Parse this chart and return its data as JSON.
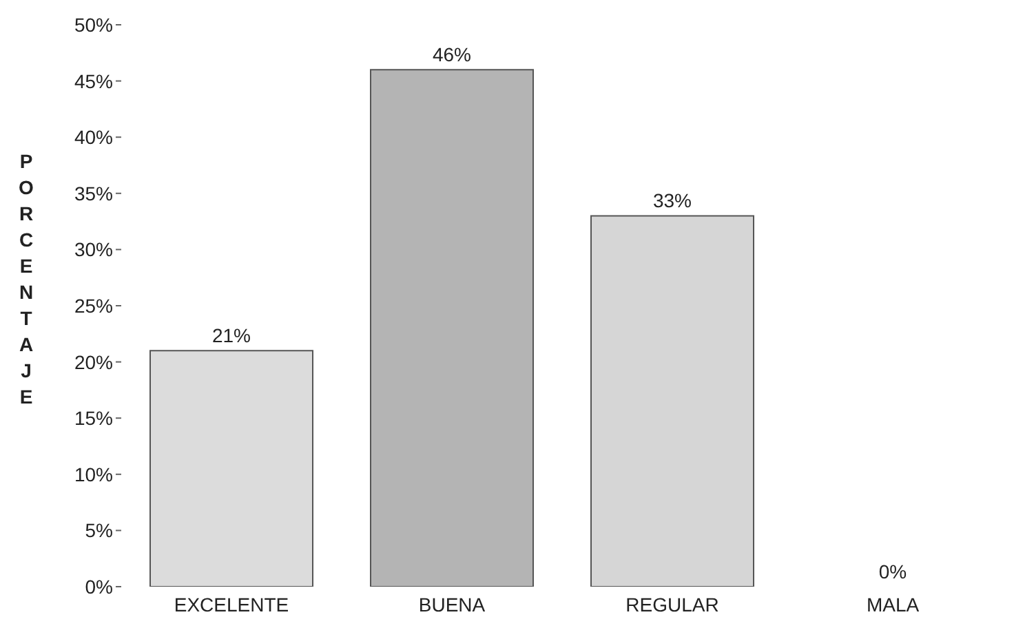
{
  "chart_data": {
    "type": "bar",
    "ylabel": "PORCENTAJE",
    "categories": [
      "EXCELENTE",
      "BUENA",
      "REGULAR",
      "MALA"
    ],
    "values": [
      21,
      46,
      33,
      0
    ],
    "value_labels": [
      "21%",
      "46%",
      "33%",
      "0%"
    ],
    "colors": [
      "#dcdcdc",
      "#b4b4b4",
      "#d6d6d6",
      "#d6d6d6"
    ],
    "ylim": [
      0,
      50
    ],
    "yticks": [
      {
        "value": 0,
        "label": "0%"
      },
      {
        "value": 5,
        "label": "5%"
      },
      {
        "value": 10,
        "label": "10%"
      },
      {
        "value": 15,
        "label": "15%"
      },
      {
        "value": 20,
        "label": "20%"
      },
      {
        "value": 25,
        "label": "25%"
      },
      {
        "value": 30,
        "label": "30%"
      },
      {
        "value": 35,
        "label": "35%"
      },
      {
        "value": 40,
        "label": "40%"
      },
      {
        "value": 45,
        "label": "45%"
      },
      {
        "value": 50,
        "label": "50%"
      }
    ],
    "grid": false
  }
}
